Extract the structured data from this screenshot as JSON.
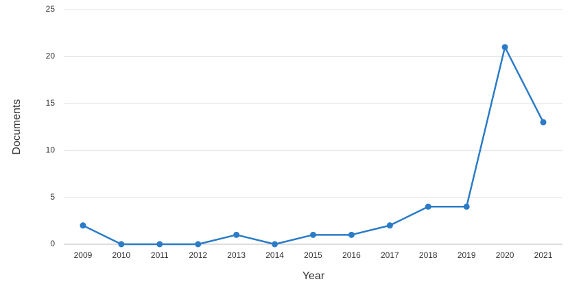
{
  "chart_data": {
    "type": "line",
    "x_label": "Year",
    "y_label": "Documents",
    "categories": [
      "2009",
      "2010",
      "2011",
      "2012",
      "2013",
      "2014",
      "2015",
      "2016",
      "2017",
      "2018",
      "2019",
      "2020",
      "2021"
    ],
    "series": [
      {
        "name": "Documents",
        "color": "#2b7bc7",
        "values": [
          2,
          0,
          0,
          0,
          1,
          0,
          1,
          1,
          2,
          4,
          4,
          21,
          13
        ]
      }
    ],
    "ylim": [
      0,
      25
    ],
    "yticks": [
      0,
      5,
      10,
      15,
      20,
      25
    ],
    "grid": true
  }
}
